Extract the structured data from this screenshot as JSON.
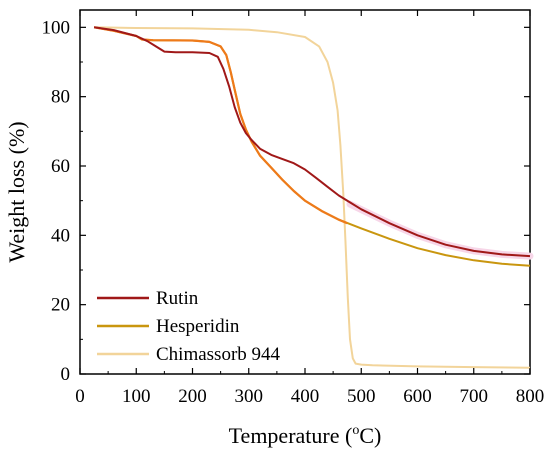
{
  "chart_data": {
    "type": "line",
    "xlabel": "Temperature (",
    "xlabel_sup": "o",
    "xlabel_unit": "C)",
    "ylabel": "Weight loss (%)",
    "xlim": [
      0,
      800
    ],
    "ylim": [
      0,
      105
    ],
    "x_ticks": [
      0,
      100,
      200,
      300,
      400,
      500,
      600,
      700,
      800
    ],
    "y_ticks": [
      0,
      20,
      40,
      60,
      80,
      100
    ],
    "grid": false,
    "legend_position": "bottom-left",
    "series": [
      {
        "name": "Rutin",
        "color": "#A01818",
        "x": [
          25,
          60,
          100,
          120,
          135,
          150,
          170,
          200,
          230,
          245,
          255,
          265,
          275,
          285,
          295,
          305,
          320,
          340,
          360,
          380,
          400,
          420,
          440,
          460,
          480,
          500,
          550,
          600,
          650,
          700,
          750,
          800
        ],
        "y": [
          100,
          99.2,
          97.5,
          96,
          94.5,
          93,
          92.8,
          92.8,
          92.6,
          91.5,
          88,
          83,
          77,
          72.5,
          69.5,
          67.5,
          65,
          63.2,
          62,
          60.8,
          59,
          56.5,
          54,
          51.5,
          49.5,
          47.5,
          43.5,
          40,
          37.3,
          35.5,
          34.5,
          34
        ]
      },
      {
        "name": "Hesperidin",
        "color": "#C9960F",
        "x": [
          25,
          60,
          100,
          110,
          130,
          200,
          230,
          250,
          260,
          268,
          275,
          285,
          295,
          305,
          320,
          340,
          360,
          380,
          400,
          430,
          460,
          500,
          550,
          600,
          650,
          700,
          750,
          800
        ],
        "y": [
          100,
          99,
          97.5,
          96.5,
          96.3,
          96.2,
          95.8,
          94.5,
          92,
          87,
          82,
          75,
          70.5,
          67,
          63,
          59.5,
          56,
          52.8,
          50,
          47,
          44.5,
          42,
          39,
          36.3,
          34.3,
          32.8,
          31.8,
          31.2
        ]
      },
      {
        "name": "Chimassorb 944",
        "color": "#F2D49A",
        "x": [
          25,
          100,
          200,
          300,
          350,
          400,
          425,
          440,
          450,
          458,
          463,
          468,
          472,
          476,
          480,
          485,
          490,
          500,
          520,
          600,
          700,
          800
        ],
        "y": [
          100,
          99.8,
          99.7,
          99.3,
          98.6,
          97.2,
          94.5,
          90,
          84,
          76,
          66,
          52,
          38,
          22,
          10,
          4.5,
          3,
          2.7,
          2.5,
          2.2,
          2,
          1.8
        ]
      }
    ]
  },
  "orange_overlay": {
    "color": "#EE7A1A",
    "x": [
      25,
      60,
      100,
      110,
      130,
      200,
      230,
      250,
      260,
      268,
      275,
      285,
      295,
      305,
      320,
      340,
      360,
      380,
      400,
      430,
      460,
      475
    ],
    "y": [
      100,
      99,
      97.5,
      96.5,
      96.3,
      96.2,
      95.8,
      94.5,
      92,
      87,
      82,
      75,
      70.5,
      67,
      63,
      59.5,
      56,
      52.8,
      50,
      47,
      44.5,
      43.5
    ]
  },
  "pink_halo": {
    "color": "#F7D6E8",
    "x": [
      480,
      550,
      600,
      650,
      700,
      750,
      800
    ],
    "y": [
      49,
      43.5,
      40,
      37.3,
      35.5,
      34.5,
      34
    ]
  }
}
